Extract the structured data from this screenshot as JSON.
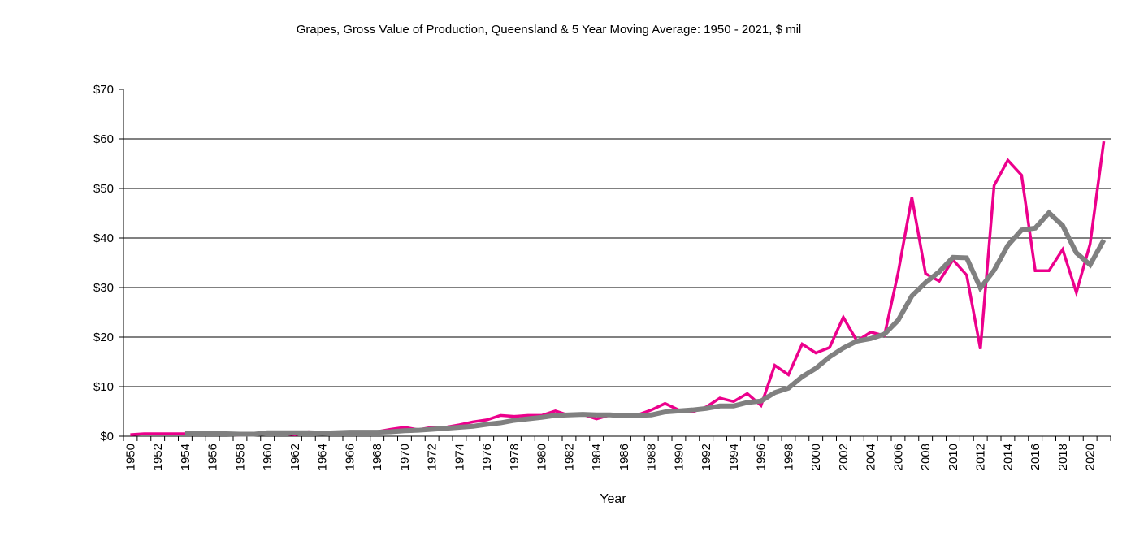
{
  "chart_data": {
    "type": "line",
    "title": "Grapes, Gross Value of Production, Queensland & 5 Year Moving Average: 1950 - 2021, $ mil",
    "xlabel": "Year",
    "ylabel": "",
    "ylim": [
      0,
      70
    ],
    "yticks": [
      0,
      10,
      20,
      30,
      40,
      50,
      60,
      70
    ],
    "ytick_labels": [
      "$0",
      "$10",
      "$20",
      "$30",
      "$40",
      "$50",
      "$60",
      "$70"
    ],
    "grid": "horizontal",
    "legend": "none",
    "x": [
      1950,
      1951,
      1952,
      1953,
      1954,
      1955,
      1956,
      1957,
      1958,
      1959,
      1960,
      1961,
      1962,
      1963,
      1964,
      1965,
      1966,
      1967,
      1968,
      1969,
      1970,
      1971,
      1972,
      1973,
      1974,
      1975,
      1976,
      1977,
      1978,
      1979,
      1980,
      1981,
      1982,
      1983,
      1984,
      1985,
      1986,
      1987,
      1988,
      1989,
      1990,
      1991,
      1992,
      1993,
      1994,
      1995,
      1996,
      1997,
      1998,
      1999,
      2000,
      2001,
      2002,
      2003,
      2004,
      2005,
      2006,
      2007,
      2008,
      2009,
      2010,
      2011,
      2012,
      2013,
      2014,
      2015,
      2016,
      2017,
      2018,
      2019,
      2020,
      2021
    ],
    "xtick_labels": [
      "1950",
      "1952",
      "1954",
      "1956",
      "1958",
      "1960",
      "1962",
      "1964",
      "1966",
      "1968",
      "1970",
      "1972",
      "1974",
      "1976",
      "1978",
      "1980",
      "1982",
      "1984",
      "1986",
      "1988",
      "1990",
      "1992",
      "1994",
      "1996",
      "1998",
      "2000",
      "2002",
      "2004",
      "2006",
      "2008",
      "2010",
      "2012",
      "2014",
      "2016",
      "2018",
      "2020"
    ],
    "series": [
      {
        "name": "Gross Value of Production",
        "color": "#EC008C",
        "values": [
          0.3,
          0.5,
          0.5,
          0.5,
          0.5,
          0.4,
          0.4,
          0.4,
          0.2,
          0.5,
          0.6,
          0.6,
          0.3,
          0.9,
          0.6,
          0.8,
          0.8,
          0.8,
          0.9,
          1.4,
          1.8,
          1.3,
          1.8,
          1.8,
          2.3,
          2.9,
          3.3,
          4.2,
          4.0,
          4.2,
          4.2,
          5.1,
          4.2,
          4.4,
          3.5,
          4.3,
          4.0,
          4.3,
          5.3,
          6.6,
          5.3,
          4.9,
          5.9,
          7.7,
          7.0,
          8.6,
          6.2,
          14.3,
          12.4,
          18.6,
          16.8,
          17.9,
          24.0,
          19.2,
          21.0,
          20.3,
          33.0,
          48.2,
          32.8,
          31.3,
          35.6,
          32.5,
          17.6,
          50.6,
          55.7,
          52.7,
          33.4,
          33.4,
          37.7,
          29.0,
          38.8,
          59.5
        ]
      },
      {
        "name": "5 Year Moving Average",
        "color": "#808080",
        "values": [
          null,
          null,
          null,
          null,
          0.5,
          0.5,
          0.5,
          0.5,
          0.4,
          0.4,
          0.7,
          0.7,
          0.7,
          0.7,
          0.6,
          0.7,
          0.8,
          0.8,
          0.8,
          0.9,
          1.1,
          1.2,
          1.4,
          1.6,
          1.8,
          2.0,
          2.4,
          2.7,
          3.2,
          3.5,
          3.8,
          4.2,
          4.3,
          4.4,
          4.3,
          4.3,
          4.1,
          4.2,
          4.3,
          4.9,
          5.1,
          5.3,
          5.6,
          6.1,
          6.1,
          6.8,
          7.1,
          8.8,
          9.7,
          12.0,
          13.7,
          16.0,
          17.8,
          19.2,
          19.7,
          20.6,
          23.4,
          28.3,
          31.0,
          33.2,
          36.1,
          36.0,
          29.9,
          33.5,
          38.5,
          41.6,
          42.0,
          45.1,
          42.5,
          37.0,
          34.6,
          39.6
        ]
      }
    ]
  }
}
